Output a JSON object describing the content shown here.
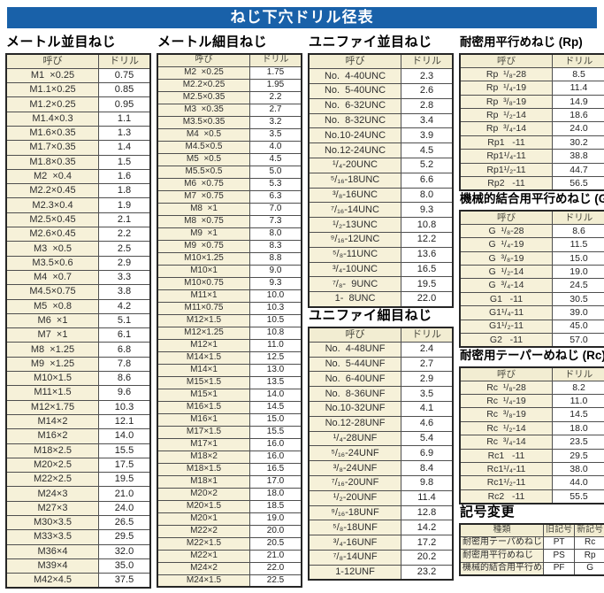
{
  "title": "ねじ下穴ドリル径表",
  "colors": {
    "title_bg": "#1961a9",
    "title_fg": "#ffffff",
    "name_cell_bg": "#f6f1d9",
    "header_cell_bg": "#f2edd2",
    "value_cell_bg": "#ffffff",
    "border": "#262626"
  },
  "tables": {
    "metric_coarse": {
      "heading": "メートル並目ねじ",
      "headers": [
        "呼び",
        "ドリル"
      ],
      "rows": [
        [
          "M1  ×0.25",
          "0.75"
        ],
        [
          "M1.1×0.25",
          "0.85"
        ],
        [
          "M1.2×0.25",
          "0.95"
        ],
        [
          "M1.4×0.3",
          "1.1"
        ],
        [
          "M1.6×0.35",
          "1.3"
        ],
        [
          "M1.7×0.35",
          "1.4"
        ],
        [
          "M1.8×0.35",
          "1.5"
        ],
        [
          "M2  ×0.4",
          "1.6"
        ],
        [
          "M2.2×0.45",
          "1.8"
        ],
        [
          "M2.3×0.4",
          "1.9"
        ],
        [
          "M2.5×0.45",
          "2.1"
        ],
        [
          "M2.6×0.45",
          "2.2"
        ],
        [
          "M3  ×0.5",
          "2.5"
        ],
        [
          "M3.5×0.6",
          "2.9"
        ],
        [
          "M4  ×0.7",
          "3.3"
        ],
        [
          "M4.5×0.75",
          "3.8"
        ],
        [
          "M5  ×0.8",
          "4.2"
        ],
        [
          "M6  ×1",
          "5.1"
        ],
        [
          "M7  ×1",
          "6.1"
        ],
        [
          "M8  ×1.25",
          "6.8"
        ],
        [
          "M9  ×1.25",
          "7.8"
        ],
        [
          "M10×1.5",
          "8.6"
        ],
        [
          "M11×1.5",
          "9.6"
        ],
        [
          "M12×1.75",
          "10.3"
        ],
        [
          "M14×2",
          "12.1"
        ],
        [
          "M16×2",
          "14.0"
        ],
        [
          "M18×2.5",
          "15.5"
        ],
        [
          "M20×2.5",
          "17.5"
        ],
        [
          "M22×2.5",
          "19.5"
        ],
        [
          "M24×3",
          "21.0"
        ],
        [
          "M27×3",
          "24.0"
        ],
        [
          "M30×3.5",
          "26.5"
        ],
        [
          "M33×3.5",
          "29.5"
        ],
        [
          "M36×4",
          "32.0"
        ],
        [
          "M39×4",
          "35.0"
        ],
        [
          "M42×4.5",
          "37.5"
        ]
      ]
    },
    "metric_fine": {
      "heading": "メートル細目ねじ",
      "headers": [
        "呼び",
        "ドリル"
      ],
      "rows": [
        [
          "M2  ×0.25",
          "1.75"
        ],
        [
          "M2.2×0.25",
          "1.95"
        ],
        [
          "M2.5×0.35",
          "2.2"
        ],
        [
          "M3  ×0.35",
          "2.7"
        ],
        [
          "M3.5×0.35",
          "3.2"
        ],
        [
          "M4  ×0.5",
          "3.5"
        ],
        [
          "M4.5×0.5",
          "4.0"
        ],
        [
          "M5  ×0.5",
          "4.5"
        ],
        [
          "M5.5×0.5",
          "5.0"
        ],
        [
          "M6  ×0.75",
          "5.3"
        ],
        [
          "M7  ×0.75",
          "6.3"
        ],
        [
          "M8  ×1",
          "7.0"
        ],
        [
          "M8  ×0.75",
          "7.3"
        ],
        [
          "M9  ×1",
          "8.0"
        ],
        [
          "M9  ×0.75",
          "8.3"
        ],
        [
          "M10×1.25",
          "8.8"
        ],
        [
          "M10×1",
          "9.0"
        ],
        [
          "M10×0.75",
          "9.3"
        ],
        [
          "M11×1",
          "10.0"
        ],
        [
          "M11×0.75",
          "10.3"
        ],
        [
          "M12×1.5",
          "10.5"
        ],
        [
          "M12×1.25",
          "10.8"
        ],
        [
          "M12×1",
          "11.0"
        ],
        [
          "M14×1.5",
          "12.5"
        ],
        [
          "M14×1",
          "13.0"
        ],
        [
          "M15×1.5",
          "13.5"
        ],
        [
          "M15×1",
          "14.0"
        ],
        [
          "M16×1.5",
          "14.5"
        ],
        [
          "M16×1",
          "15.0"
        ],
        [
          "M17×1.5",
          "15.5"
        ],
        [
          "M17×1",
          "16.0"
        ],
        [
          "M18×2",
          "16.0"
        ],
        [
          "M18×1.5",
          "16.5"
        ],
        [
          "M18×1",
          "17.0"
        ],
        [
          "M20×2",
          "18.0"
        ],
        [
          "M20×1.5",
          "18.5"
        ],
        [
          "M20×1",
          "19.0"
        ],
        [
          "M22×2",
          "20.0"
        ],
        [
          "M22×1.5",
          "20.5"
        ],
        [
          "M22×1",
          "21.0"
        ],
        [
          "M24×2",
          "22.0"
        ],
        [
          "M24×1.5",
          "22.5"
        ]
      ]
    },
    "unified_coarse": {
      "heading": "ユニファイ並目ねじ",
      "headers": [
        "呼び",
        "ドリル"
      ],
      "rows": [
        [
          "No.  4-40UNC",
          "2.3"
        ],
        [
          "No.  5-40UNC",
          "2.6"
        ],
        [
          "No.  6-32UNC",
          "2.8"
        ],
        [
          "No.  8-32UNC",
          "3.4"
        ],
        [
          "No.10-24UNC",
          "3.9"
        ],
        [
          "No.12-24UNC",
          "4.5"
        ],
        [
          "¹/₄-20UNC",
          "5.2"
        ],
        [
          "⁵/₁₆-18UNC",
          "6.6"
        ],
        [
          "³/₈-16UNC",
          "8.0"
        ],
        [
          "⁷/₁₆-14UNC",
          "9.3"
        ],
        [
          "¹/₂-13UNC",
          "10.8"
        ],
        [
          "⁹/₁₆-12UNC",
          "12.2"
        ],
        [
          "⁵/₈-11UNC",
          "13.6"
        ],
        [
          "³/₄-10UNC",
          "16.5"
        ],
        [
          "⁷/₈-  9UNC",
          "19.5"
        ],
        [
          "1-  8UNC",
          "22.0"
        ]
      ]
    },
    "unified_fine": {
      "heading": "ユニファイ細目ねじ",
      "headers": [
        "呼び",
        "ドリル"
      ],
      "rows": [
        [
          "No.  4-48UNF",
          "2.4"
        ],
        [
          "No.  5-44UNF",
          "2.7"
        ],
        [
          "No.  6-40UNF",
          "2.9"
        ],
        [
          "No.  8-36UNF",
          "3.5"
        ],
        [
          "No.10-32UNF",
          "4.1"
        ],
        [
          "No.12-28UNF",
          "4.6"
        ],
        [
          "¹/₄-28UNF",
          "5.4"
        ],
        [
          "⁵/₁₆-24UNF",
          "6.9"
        ],
        [
          "³/₈-24UNF",
          "8.4"
        ],
        [
          "⁷/₁₆-20UNF",
          "9.8"
        ],
        [
          "¹/₂-20UNF",
          "11.4"
        ],
        [
          "⁹/₁₆-18UNF",
          "12.8"
        ],
        [
          "⁵/₈-18UNF",
          "14.2"
        ],
        [
          "³/₄-16UNF",
          "17.2"
        ],
        [
          "⁷/₈-14UNF",
          "20.2"
        ],
        [
          "1-12UNF",
          "23.2"
        ]
      ]
    },
    "rp": {
      "heading": "耐密用平行めねじ (Rp)",
      "headers": [
        "呼び",
        "ドリル"
      ],
      "rows": [
        [
          "Rp  ¹/₈-28",
          "8.5"
        ],
        [
          "Rp  ¹/₄-19",
          "11.4"
        ],
        [
          "Rp  ³/₈-19",
          "14.9"
        ],
        [
          "Rp  ¹/₂-14",
          "18.6"
        ],
        [
          "Rp  ³/₄-14",
          "24.0"
        ],
        [
          "Rp1   -11",
          "30.2"
        ],
        [
          "Rp1¹/₄-11",
          "38.8"
        ],
        [
          "Rp1¹/₂-11",
          "44.7"
        ],
        [
          "Rp2   -11",
          "56.5"
        ]
      ]
    },
    "g": {
      "heading": "機械的結合用平行めねじ (G)",
      "headers": [
        "呼び",
        "ドリル"
      ],
      "rows": [
        [
          "G  ¹/₈-28",
          "8.6"
        ],
        [
          "G  ¹/₄-19",
          "11.5"
        ],
        [
          "G  ³/₈-19",
          "15.0"
        ],
        [
          "G  ¹/₂-14",
          "19.0"
        ],
        [
          "G  ³/₄-14",
          "24.5"
        ],
        [
          "G1   -11",
          "30.5"
        ],
        [
          "G1¹/₄-11",
          "39.0"
        ],
        [
          "G1¹/₂-11",
          "45.0"
        ],
        [
          "G2   -11",
          "57.0"
        ]
      ]
    },
    "rc": {
      "heading": "耐密用テーパーめねじ (Rc)",
      "headers": [
        "呼び",
        "ドリル"
      ],
      "rows": [
        [
          "Rc  ¹/₈-28",
          "8.2"
        ],
        [
          "Rc  ¹/₄-19",
          "11.0"
        ],
        [
          "Rc  ³/₈-19",
          "14.5"
        ],
        [
          "Rc  ¹/₂-14",
          "18.0"
        ],
        [
          "Rc  ³/₄-14",
          "23.5"
        ],
        [
          "Rc1   -11",
          "29.5"
        ],
        [
          "Rc1¹/₄-11",
          "38.0"
        ],
        [
          "Rc1¹/₂-11",
          "44.0"
        ],
        [
          "Rc2   -11",
          "55.5"
        ]
      ]
    },
    "symbol_change": {
      "heading": "記号変更",
      "headers": [
        "種類",
        "旧記号",
        "新記号"
      ],
      "rows": [
        [
          "耐密用テーパめねじ",
          "PT",
          "Rc"
        ],
        [
          "耐密用平行めねじ",
          "PS",
          "Rp"
        ],
        [
          "機械的結合用平行めねじ",
          "PF",
          "G"
        ]
      ]
    }
  }
}
